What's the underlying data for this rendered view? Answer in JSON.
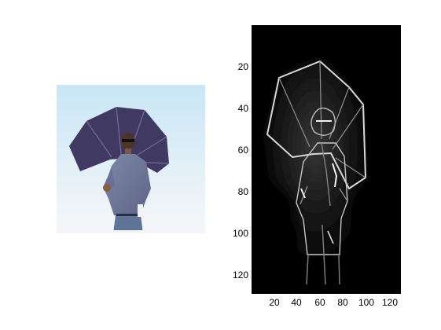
{
  "figure": {
    "left_image": {
      "semantic": "photo-man-with-umbrella"
    },
    "right_image": {
      "semantic": "edge-map-man-with-umbrella",
      "background_color": "#000000",
      "y_ticks": [
        "20",
        "40",
        "60",
        "80",
        "100",
        "120"
      ],
      "x_ticks": [
        "20",
        "40",
        "60",
        "80",
        "100",
        "120"
      ]
    }
  }
}
